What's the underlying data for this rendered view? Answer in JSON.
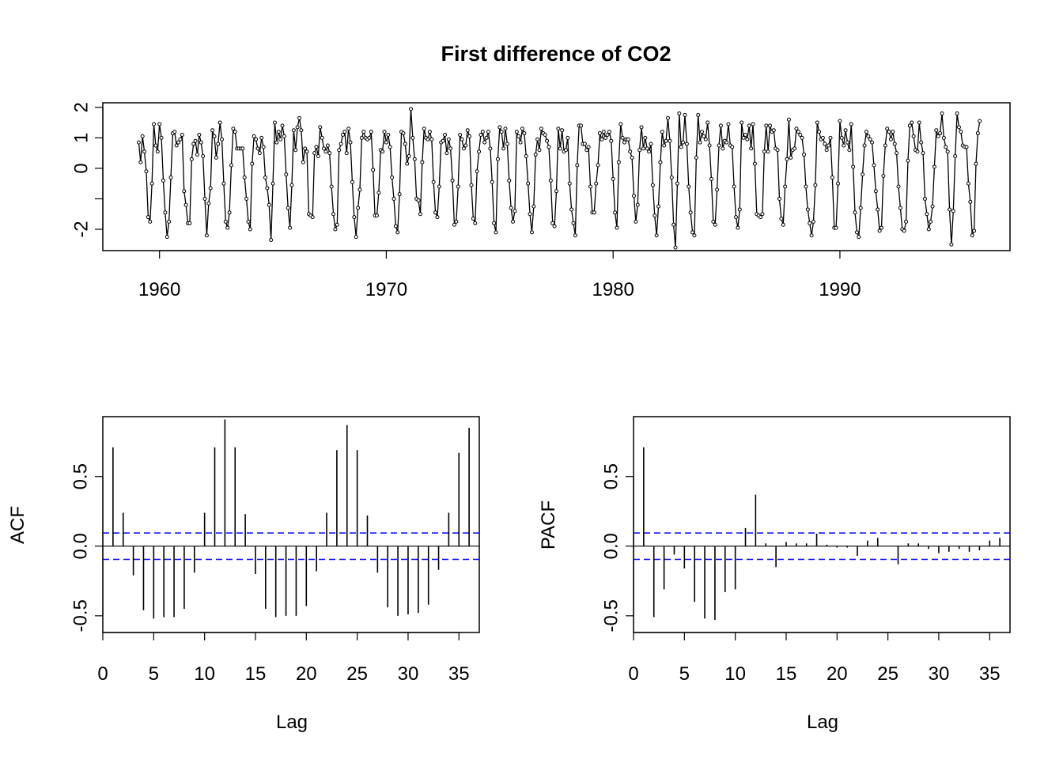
{
  "title": "First difference of CO2",
  "chart_data": [
    {
      "id": "ts",
      "type": "line",
      "title": "First difference of CO2",
      "xlabel": "",
      "ylabel": "",
      "xlim": [
        1957.5,
        1997.5
      ],
      "ylim": [
        -2.7,
        2.15
      ],
      "xticks": [
        1960,
        1970,
        1980,
        1990
      ],
      "yticks": [
        -2,
        -1,
        0,
        1,
        2
      ],
      "ytick_labels": [
        "-2",
        "",
        "0",
        "1",
        "2"
      ],
      "series": [
        {
          "start": 1959.0833,
          "frequency": 12,
          "seasonal_pattern": [
            0.85,
            1.0,
            0.55,
            0.1,
            -1.6,
            -1.75,
            -0.5,
            1.3,
            0.75,
            0.65,
            1.1,
            0.95
          ],
          "note_values": "",
          "values": [
            0.85,
            0.2,
            1.05,
            0.55,
            -0.1,
            -1.6,
            -1.75,
            -0.5,
            1.45,
            0.75,
            0.55,
            1.45,
            1.0,
            -0.4,
            -1.45,
            -2.25,
            -1.75,
            -0.3,
            1.15,
            1.2,
            0.75,
            0.85,
            0.95,
            1.1,
            -0.75,
            -1.2,
            -1.8,
            -1.8,
            0.3,
            0.8,
            0.9,
            0.45,
            1.1,
            0.85,
            0.4,
            -1.0,
            -2.2,
            -1.15,
            -0.65,
            1.25,
            1.05,
            0.35,
            0.8,
            1.5,
            0.95,
            -0.5,
            -1.75,
            -1.95,
            -1.45,
            0.1,
            1.3,
            1.2,
            0.65,
            0.65,
            0.65,
            0.65,
            -0.3,
            -1.0,
            -1.75,
            -2.0,
            0.15,
            1.05,
            0.95,
            0.65,
            0.5,
            1.0,
            0.7,
            -0.3,
            -0.65,
            -1.2,
            -2.35,
            -0.5,
            1.5,
            0.85,
            1.2,
            0.95,
            1.4,
            1.05,
            -0.2,
            -1.3,
            -1.95,
            -0.55,
            1.25,
            0.6,
            1.35,
            1.65,
            1.25,
            0.2,
            0.65,
            0.55,
            -1.5,
            -1.55,
            -1.6,
            0.5,
            0.7,
            0.4,
            1.35,
            1.0,
            0.65,
            0.55,
            0.75,
            0.5,
            -0.6,
            -1.5,
            -2.0,
            -1.85,
            0.6,
            0.8,
            1.1,
            1.2,
            0.5,
            1.3,
            0.85,
            -0.45,
            -1.6,
            -2.25,
            -1.3,
            -0.7,
            1.0,
            1.2,
            1.0,
            0.95,
            1.0,
            1.2,
            -0.05,
            -1.55,
            -1.55,
            -0.8,
            0.6,
            0.55,
            1.2,
            0.85,
            1.1,
            0.7,
            -0.3,
            -1.0,
            -1.9,
            -2.1,
            -0.85,
            1.2,
            1.15,
            0.8,
            0.15,
            0.4,
            1.95,
            1.0,
            0.3,
            -1.0,
            -1.05,
            -1.5,
            0.2,
            1.3,
            1.0,
            0.95,
            1.2,
            0.95,
            -0.45,
            -1.45,
            -1.6,
            -0.6,
            0.85,
            0.9,
            1.1,
            0.5,
            0.95,
            0.65,
            -0.4,
            -1.85,
            -1.75,
            -0.6,
            1.1,
            0.95,
            0.65,
            0.75,
            1.25,
            1.05,
            -0.55,
            -1.65,
            -1.8,
            -0.1,
            0.55,
            1.1,
            1.2,
            0.85,
            1.0,
            1.2,
            0.65,
            -0.45,
            -1.8,
            -2.1,
            0.3,
            1.35,
            1.2,
            0.65,
            1.3,
            0.8,
            -0.4,
            -1.3,
            -1.75,
            -1.4,
            1.2,
            1.05,
            0.85,
            1.3,
            1.15,
            0.4,
            -0.5,
            -1.5,
            -2.1,
            -1.25,
            0.45,
            0.95,
            0.6,
            1.3,
            1.15,
            1.1,
            0.9,
            0.7,
            -0.4,
            -1.8,
            -1.9,
            -0.75,
            1.3,
            0.65,
            1.25,
            0.55,
            0.6,
            1.0,
            -0.5,
            -1.35,
            -1.8,
            -2.2,
            0.1,
            1.4,
            1.4,
            0.8,
            0.8,
            0.6,
            0.7,
            -0.6,
            -1.45,
            -1.45,
            -0.5,
            0.1,
            1.15,
            0.95,
            1.2,
            1.0,
            1.1,
            1.2,
            0.9,
            -0.35,
            -1.45,
            -1.95,
            0.2,
            1.45,
            1.0,
            0.85,
            0.95,
            0.95,
            0.55,
            0.35,
            -0.9,
            -1.75,
            -1.2,
            0.6,
            1.35,
            0.65,
            1.0,
            0.65,
            0.55,
            0.8,
            -0.55,
            -1.55,
            -2.2,
            -1.25,
            0.2,
            1.2,
            0.75,
            0.9,
            1.65,
            0.9,
            -0.3,
            -1.85,
            -2.6,
            -0.5,
            1.8,
            0.7,
            0.85,
            1.75,
            0.8,
            -0.6,
            -1.45,
            -2.1,
            -2.2,
            0.35,
            1.75,
            0.85,
            1.2,
            1.05,
            0.95,
            1.5,
            0.75,
            -0.35,
            -1.75,
            -1.85,
            -0.7,
            0.75,
            1.4,
            0.65,
            0.9,
            0.85,
            1.45,
            0.75,
            0.7,
            -0.6,
            -1.6,
            -1.95,
            -1.35,
            1.5,
            1.0,
            1.1,
            0.95,
            1.4,
            0.65,
            1.45,
            0.15,
            -1.5,
            -1.55,
            -1.6,
            -1.5,
            0.55,
            1.4,
            0.55,
            1.4,
            1.2,
            1.25,
            0.65,
            0.6,
            -1.0,
            -1.65,
            -1.85,
            -0.6,
            0.3,
            1.6,
            0.35,
            0.6,
            0.65,
            1.3,
            1.2,
            1.1,
            1.0,
            0.45,
            -0.6,
            -1.35,
            -1.8,
            -2.2,
            -1.75,
            -0.55,
            1.5,
            1.2,
            0.95,
            1.0,
            0.8,
            0.6,
            0.75,
            1.0,
            -0.3,
            -1.95,
            -1.95,
            -0.5,
            1.55,
            1.0,
            0.75,
            1.25,
            0.85,
            0.6,
            1.45,
            0.05,
            -1.45,
            -2.1,
            -2.25,
            -1.3,
            -0.2,
            0.75,
            1.2,
            1.05,
            0.95,
            0.85,
            0.1,
            -0.75,
            -1.35,
            -2.05,
            -1.95,
            -0.25,
            0.75,
            1.3,
            1.2,
            0.95,
            1.2,
            0.8,
            0.5,
            -0.6,
            -1.3,
            -2.0,
            -2.05,
            -1.75,
            0.25,
            1.4,
            1.5,
            1.05,
            0.6,
            0.55,
            1.5,
            0.85,
            0.5,
            -1.0,
            -1.5,
            -2.0,
            -1.75,
            -1.25,
            0.05,
            1.25,
            1.05,
            1.15,
            1.8,
            1.0,
            0.7,
            0.55,
            -1.35,
            -2.5,
            -1.4,
            0.4,
            1.8,
            1.35,
            1.2,
            0.75,
            0.7,
            0.7,
            -0.5,
            -1.1,
            -2.2,
            -2.05,
            0.15,
            1.15,
            1.55
          ]
        }
      ]
    },
    {
      "id": "acf",
      "type": "bar",
      "title": "",
      "xlabel": "Lag",
      "ylabel": "ACF",
      "xlim": [
        0,
        37
      ],
      "ylim": [
        -0.62,
        0.93
      ],
      "xticks": [
        0,
        5,
        10,
        15,
        20,
        25,
        30,
        35
      ],
      "yticks": [
        -0.5,
        0.0,
        0.5
      ],
      "ytick_labels": [
        "-0.5",
        "0.0",
        "0.5"
      ],
      "ci": 0.095,
      "x": [
        1,
        2,
        3,
        4,
        5,
        6,
        7,
        8,
        9,
        10,
        11,
        12,
        13,
        14,
        15,
        16,
        17,
        18,
        19,
        20,
        21,
        22,
        23,
        24,
        25,
        26,
        27,
        28,
        29,
        30,
        31,
        32,
        33,
        34,
        35,
        36
      ],
      "values": [
        0.71,
        0.24,
        -0.21,
        -0.46,
        -0.52,
        -0.51,
        -0.51,
        -0.45,
        -0.19,
        0.24,
        0.71,
        0.91,
        0.71,
        0.23,
        -0.2,
        -0.45,
        -0.51,
        -0.5,
        -0.5,
        -0.43,
        -0.18,
        0.24,
        0.69,
        0.87,
        0.69,
        0.22,
        -0.19,
        -0.44,
        -0.5,
        -0.49,
        -0.48,
        -0.42,
        -0.17,
        0.24,
        0.67,
        0.85
      ]
    },
    {
      "id": "pacf",
      "type": "bar",
      "title": "",
      "xlabel": "Lag",
      "ylabel": "PACF",
      "xlim": [
        0,
        37
      ],
      "ylim": [
        -0.62,
        0.93
      ],
      "xticks": [
        0,
        5,
        10,
        15,
        20,
        25,
        30,
        35
      ],
      "yticks": [
        -0.5,
        0.0,
        0.5
      ],
      "ytick_labels": [
        "-0.5",
        "0.0",
        "0.5"
      ],
      "ci": 0.095,
      "x": [
        1,
        2,
        3,
        4,
        5,
        6,
        7,
        8,
        9,
        10,
        11,
        12,
        13,
        14,
        15,
        16,
        17,
        18,
        19,
        20,
        21,
        22,
        23,
        24,
        25,
        26,
        27,
        28,
        29,
        30,
        31,
        32,
        33,
        34,
        35,
        36
      ],
      "values": [
        0.71,
        -0.51,
        -0.31,
        -0.06,
        -0.16,
        -0.4,
        -0.52,
        -0.53,
        -0.33,
        -0.31,
        0.13,
        0.37,
        0.02,
        -0.15,
        0.03,
        0.02,
        0.02,
        0.09,
        0.01,
        -0.01,
        -0.01,
        -0.07,
        0.04,
        0.06,
        0.0,
        -0.13,
        0.02,
        0.02,
        -0.02,
        -0.05,
        -0.04,
        -0.02,
        -0.04,
        -0.03,
        0.04,
        0.06
      ]
    }
  ]
}
